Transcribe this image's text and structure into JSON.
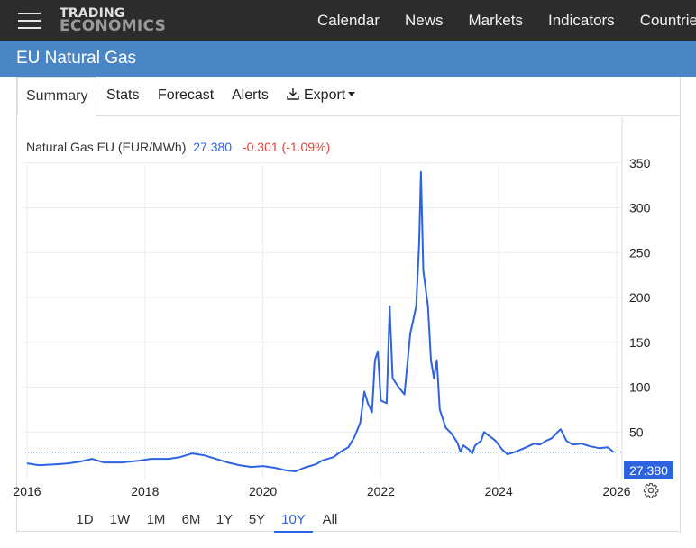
{
  "header": {
    "logo_line1": "TRADING",
    "logo_line2": "ECONOMICS",
    "nav": [
      "Calendar",
      "News",
      "Markets",
      "Indicators",
      "Countries"
    ]
  },
  "page_title": "EU Natural Gas",
  "tabs": {
    "summary": "Summary",
    "stats": "Stats",
    "forecast": "Forecast",
    "alerts": "Alerts",
    "export": "Export"
  },
  "legend": {
    "label": "Natural Gas EU (EUR/MWh)",
    "price": "27.380",
    "change": "-0.301 (-1.09%)"
  },
  "last_value_label": "27.380",
  "ranges": [
    "1D",
    "1W",
    "1M",
    "6M",
    "1Y",
    "5Y",
    "10Y",
    "All"
  ],
  "active_range": "10Y",
  "colors": {
    "accent": "#2d63e0",
    "negative": "#e0403a",
    "title_bar": "#4a86c6",
    "top_bar": "#2c2c2c"
  },
  "chart_data": {
    "type": "line",
    "title": "Natural Gas EU (EUR/MWh)",
    "x_tick_labels": [
      "2016",
      "2018",
      "2020",
      "2022",
      "2024",
      "2026"
    ],
    "y_tick_labels": [
      "50",
      "100",
      "150",
      "200",
      "250",
      "300",
      "350"
    ],
    "xlim": [
      2016.0,
      2026.1
    ],
    "ylim": [
      0,
      380
    ],
    "grid": true,
    "last_value": 27.38,
    "series": [
      {
        "values": [
          [
            2016.0,
            15
          ],
          [
            2016.2,
            13
          ],
          [
            2016.5,
            14
          ],
          [
            2016.7,
            15
          ],
          [
            2016.9,
            17
          ],
          [
            2017.1,
            20
          ],
          [
            2017.3,
            16
          ],
          [
            2017.6,
            16
          ],
          [
            2017.9,
            18
          ],
          [
            2018.1,
            20
          ],
          [
            2018.4,
            20
          ],
          [
            2018.6,
            22
          ],
          [
            2018.8,
            26
          ],
          [
            2019.0,
            24
          ],
          [
            2019.2,
            20
          ],
          [
            2019.4,
            16
          ],
          [
            2019.6,
            13
          ],
          [
            2019.8,
            11
          ],
          [
            2020.0,
            12
          ],
          [
            2020.2,
            10
          ],
          [
            2020.4,
            7
          ],
          [
            2020.55,
            6
          ],
          [
            2020.7,
            10
          ],
          [
            2020.9,
            14
          ],
          [
            2021.0,
            18
          ],
          [
            2021.2,
            22
          ],
          [
            2021.3,
            27
          ],
          [
            2021.45,
            33
          ],
          [
            2021.55,
            44
          ],
          [
            2021.65,
            60
          ],
          [
            2021.72,
            95
          ],
          [
            2021.78,
            82
          ],
          [
            2021.85,
            72
          ],
          [
            2021.9,
            130
          ],
          [
            2021.95,
            140
          ],
          [
            2022.0,
            85
          ],
          [
            2022.1,
            82
          ],
          [
            2022.15,
            190
          ],
          [
            2022.2,
            110
          ],
          [
            2022.3,
            100
          ],
          [
            2022.4,
            92
          ],
          [
            2022.5,
            160
          ],
          [
            2022.55,
            175
          ],
          [
            2022.6,
            190
          ],
          [
            2022.65,
            260
          ],
          [
            2022.68,
            340
          ],
          [
            2022.72,
            230
          ],
          [
            2022.8,
            190
          ],
          [
            2022.85,
            130
          ],
          [
            2022.9,
            110
          ],
          [
            2022.95,
            130
          ],
          [
            2023.0,
            75
          ],
          [
            2023.1,
            55
          ],
          [
            2023.2,
            48
          ],
          [
            2023.3,
            38
          ],
          [
            2023.35,
            28
          ],
          [
            2023.4,
            35
          ],
          [
            2023.5,
            30
          ],
          [
            2023.55,
            26
          ],
          [
            2023.6,
            35
          ],
          [
            2023.7,
            40
          ],
          [
            2023.75,
            50
          ],
          [
            2023.85,
            45
          ],
          [
            2023.95,
            40
          ],
          [
            2024.05,
            31
          ],
          [
            2024.15,
            25
          ],
          [
            2024.25,
            27
          ],
          [
            2024.4,
            31
          ],
          [
            2024.5,
            34
          ],
          [
            2024.6,
            37
          ],
          [
            2024.7,
            36
          ],
          [
            2024.8,
            40
          ],
          [
            2024.9,
            43
          ],
          [
            2025.0,
            50
          ],
          [
            2025.05,
            53
          ],
          [
            2025.15,
            40
          ],
          [
            2025.25,
            36
          ],
          [
            2025.4,
            37
          ],
          [
            2025.55,
            34
          ],
          [
            2025.7,
            32
          ],
          [
            2025.85,
            33
          ],
          [
            2025.95,
            27.38
          ]
        ]
      }
    ]
  }
}
